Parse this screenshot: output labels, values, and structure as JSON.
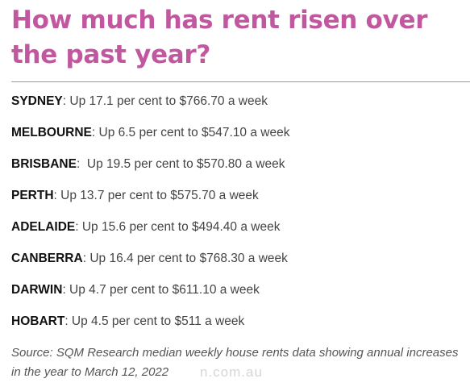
{
  "colors": {
    "title": "#c1579f",
    "divider": "#c97fb6",
    "city": "#111111",
    "detail": "#444444",
    "source": "#555555"
  },
  "title": "How much has rent risen over the past year?",
  "rows": [
    {
      "city": "SYDNEY",
      "sep": ":",
      "detail": " Up 17.1 per cent to $766.70 a week"
    },
    {
      "city": "MELBOURNE",
      "sep": ":",
      "detail": " Up 6.5 per cent to $547.10 a week"
    },
    {
      "city": "BRISBANE",
      "sep": ":",
      "detail": "  Up 19.5 per cent to $570.80 a week"
    },
    {
      "city": "PERTH",
      "sep": ":",
      "detail": " Up 13.7 per cent to $575.70 a week"
    },
    {
      "city": "ADELAIDE",
      "sep": ":",
      "detail": " Up 15.6 per cent to $494.40 a week"
    },
    {
      "city": "CANBERRA",
      "sep": ":",
      "detail": " Up 16.4 per cent to $768.30 a week"
    },
    {
      "city": "DARWIN",
      "sep": ":",
      "detail": " Up 4.7 per cent to $611.10 a week"
    },
    {
      "city": "HOBART",
      "sep": ":",
      "detail": " Up 4.5 per cent to $511 a week"
    }
  ],
  "source": "Source: SQM Research median weekly house rents data showing annual increases in the year to March 12, 2022",
  "watermark": "n.com.au"
}
